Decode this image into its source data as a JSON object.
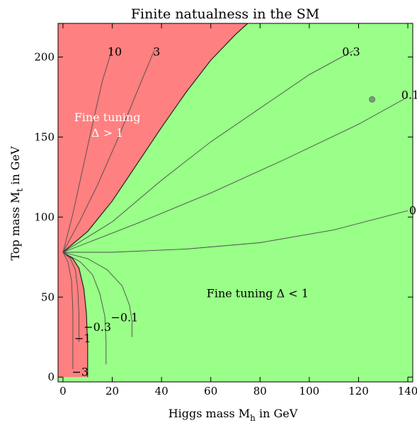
{
  "chart_data": {
    "type": "area",
    "title": "Finite natualness in the SM",
    "xlabel": "Higgs mass M",
    "xlabel_sub": "h",
    "xlabel_tail": " in GeV",
    "ylabel": "Top mass M",
    "ylabel_sub": "t",
    "ylabel_tail": " in GeV",
    "xlim": [
      -2,
      142
    ],
    "ylim": [
      -3,
      221
    ],
    "xticks": [
      0,
      20,
      40,
      60,
      80,
      100,
      120,
      140
    ],
    "yticks": [
      0,
      50,
      100,
      150,
      200
    ],
    "grid": false,
    "colors": {
      "fine_tuned": "#ff8080",
      "natural": "#99ff88",
      "point": "#7a9a7a",
      "contour": "#4d4d4d"
    },
    "regions": [
      {
        "name": "fine_tuned_upper",
        "label_lines": [
          "Fine tuning",
          "Δ > 1"
        ],
        "label_at": [
          18,
          160
        ]
      },
      {
        "name": "natural",
        "label_lines": [
          "Fine tuning Δ < 1"
        ],
        "label_at": [
          79,
          50
        ]
      },
      {
        "name": "fine_tuned_lower"
      }
    ],
    "boundary_delta_1": [
      [
        0,
        78
      ],
      [
        10,
        91
      ],
      [
        20,
        110
      ],
      [
        30,
        133
      ],
      [
        40,
        156
      ],
      [
        50,
        178
      ],
      [
        60,
        198
      ],
      [
        70,
        214
      ],
      [
        75,
        221
      ]
    ],
    "lower_boundary": [
      [
        0,
        78
      ],
      [
        4,
        74
      ],
      [
        6.5,
        68
      ],
      [
        8.5,
        55
      ],
      [
        9.5,
        40
      ],
      [
        10,
        20
      ],
      [
        10,
        0
      ]
    ],
    "point": {
      "x": 125.5,
      "y": 173.5
    },
    "contours": [
      {
        "level": "10",
        "label": "10",
        "label_at": [
          21,
          203
        ],
        "points": [
          [
            0,
            78
          ],
          [
            4,
            102
          ],
          [
            8,
            130
          ],
          [
            12,
            158
          ],
          [
            16,
            185
          ],
          [
            20,
            205
          ]
        ]
      },
      {
        "level": "3",
        "label": "3",
        "label_at": [
          38,
          203
        ],
        "points": [
          [
            0,
            78
          ],
          [
            7,
            98
          ],
          [
            14,
            120
          ],
          [
            22,
            148
          ],
          [
            30,
            178
          ],
          [
            37,
            204
          ]
        ]
      },
      {
        "level": "0.3",
        "label": "0.3",
        "label_at": [
          117,
          203
        ],
        "points": [
          [
            0,
            78
          ],
          [
            20,
            97
          ],
          [
            40,
            123
          ],
          [
            60,
            147
          ],
          [
            80,
            168
          ],
          [
            100,
            189
          ],
          [
            112,
            199
          ],
          [
            118,
            204
          ]
        ]
      },
      {
        "level": "0.1",
        "label": "0.1",
        "label_at": [
          141,
          176
        ],
        "points": [
          [
            0,
            78
          ],
          [
            30,
            96
          ],
          [
            60,
            115
          ],
          [
            90,
            136
          ],
          [
            120,
            158
          ],
          [
            140,
            175
          ]
        ]
      },
      {
        "level": "0",
        "label": "0",
        "label_at": [
          142,
          104
        ],
        "points": [
          [
            0,
            78
          ],
          [
            20,
            78
          ],
          [
            50,
            80
          ],
          [
            80,
            84
          ],
          [
            110,
            92
          ],
          [
            130,
            100
          ],
          [
            140,
            104
          ]
        ]
      },
      {
        "level": "-0.1",
        "label": "−0.1",
        "label_at": [
          25,
          37
        ],
        "points": [
          [
            0,
            78
          ],
          [
            10,
            74
          ],
          [
            18,
            67
          ],
          [
            24,
            57
          ],
          [
            27,
            45
          ],
          [
            28,
            35
          ],
          [
            28,
            25
          ]
        ]
      },
      {
        "level": "-0.3",
        "label": "−0.3",
        "label_at": [
          14,
          31
        ],
        "points": [
          [
            0,
            78
          ],
          [
            7,
            72
          ],
          [
            12,
            64
          ],
          [
            15,
            52
          ],
          [
            17,
            38
          ],
          [
            17.5,
            22
          ],
          [
            17.5,
            8
          ]
        ]
      },
      {
        "level": "-1",
        "label": "−1",
        "label_at": [
          8,
          24
        ],
        "points": [
          [
            0,
            78
          ],
          [
            3,
            74
          ],
          [
            5,
            67
          ],
          [
            6,
            55
          ],
          [
            6.5,
            38
          ],
          [
            6.5,
            22
          ]
        ]
      },
      {
        "level": "-3",
        "label": "−3",
        "label_at": [
          7,
          3
        ],
        "points": [
          [
            0,
            78
          ],
          [
            2,
            72
          ],
          [
            3.5,
            60
          ],
          [
            4,
            42
          ],
          [
            4,
            20
          ],
          [
            4,
            5
          ]
        ]
      }
    ]
  }
}
